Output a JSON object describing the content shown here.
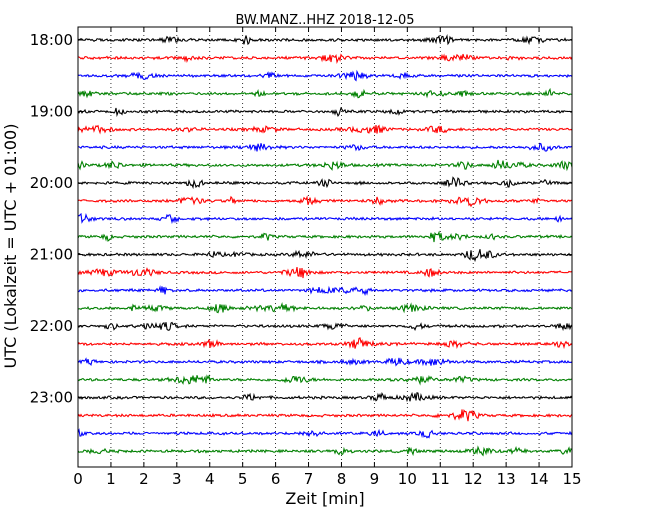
{
  "chart_data": {
    "type": "line",
    "title": "BW.MANZ..HHZ 2018-12-05",
    "xlabel": "Zeit  [min]",
    "ylabel": "UTC (Lokalzeit = UTC + 01:00)",
    "xlim": [
      0,
      15
    ],
    "x_ticks": [
      "0",
      "1",
      "2",
      "3",
      "4",
      "5",
      "6",
      "7",
      "8",
      "9",
      "10",
      "11",
      "12",
      "13",
      "14",
      "15"
    ],
    "y_ticks": [
      {
        "label": "18:00",
        "trace": 0
      },
      {
        "label": "19:00",
        "trace": 4
      },
      {
        "label": "20:00",
        "trace": 8
      },
      {
        "label": "21:00",
        "trace": 12
      },
      {
        "label": "22:00",
        "trace": 16
      },
      {
        "label": "23:00",
        "trace": 20
      }
    ],
    "grid": "vertical dotted at each minute",
    "trace_colors": [
      "#000000",
      "#ff0000",
      "#0000ff",
      "#008000"
    ],
    "trace_count": 24,
    "trace_start_times": [
      "18:00",
      "18:15",
      "18:30",
      "18:45",
      "19:00",
      "19:15",
      "19:30",
      "19:45",
      "20:00",
      "20:15",
      "20:30",
      "20:45",
      "21:00",
      "21:15",
      "21:30",
      "21:45",
      "22:00",
      "22:15",
      "22:30",
      "22:45",
      "23:00",
      "23:15",
      "23:30",
      "23:45"
    ]
  }
}
